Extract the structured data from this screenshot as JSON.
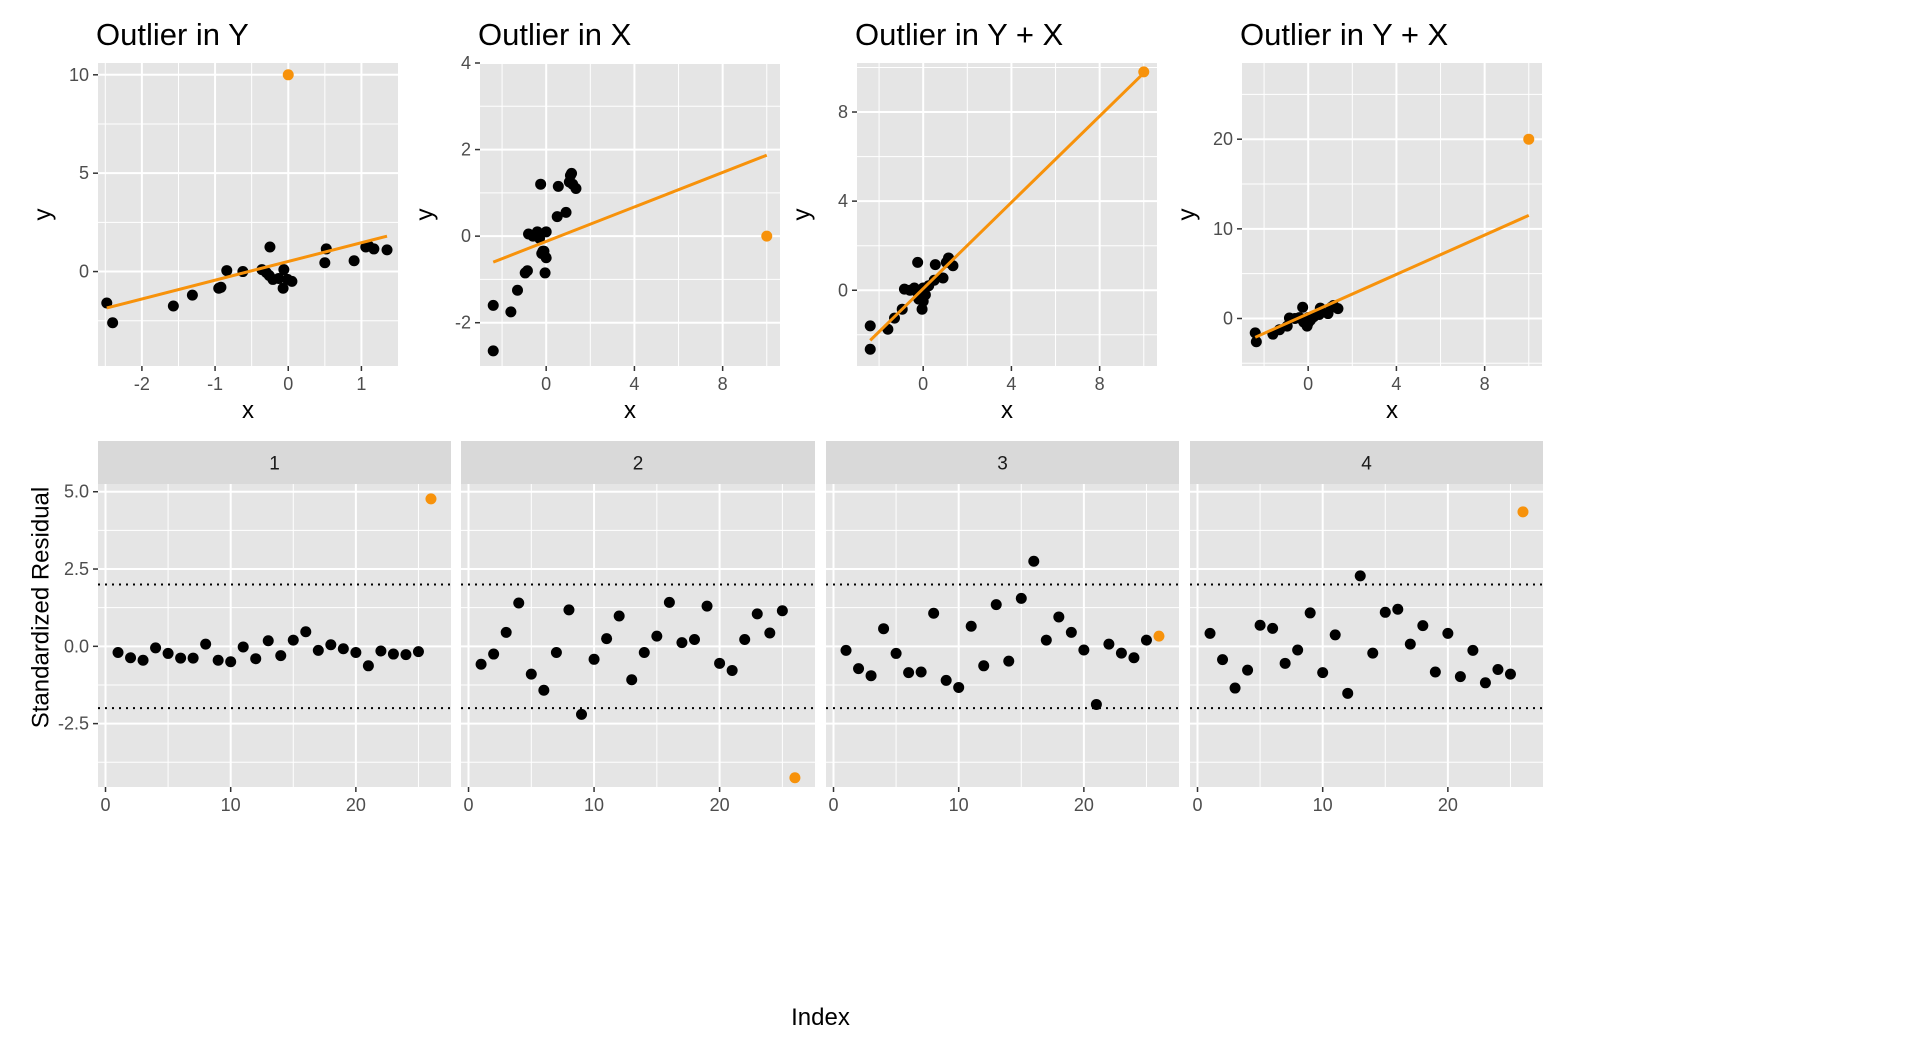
{
  "colors": {
    "panel_bg": "#e5e5e5",
    "grid": "#ffffff",
    "strip_bg": "#d9d9d9",
    "point": "#000000",
    "highlight": "#f7920b"
  },
  "chart_data": [
    {
      "type": "scatter",
      "title": "Outlier in Y",
      "xlabel": "x",
      "ylabel": "y",
      "xlim": [
        -2.6,
        1.5
      ],
      "ylim": [
        -4.8,
        10.6
      ],
      "xticks": [
        -2,
        -1,
        0,
        1
      ],
      "xtick_labels": [
        "-2",
        "-1",
        "0",
        "1"
      ],
      "yticks": [
        0,
        5,
        10
      ],
      "ytick_labels": [
        "0",
        "5",
        "10"
      ],
      "points": [
        [
          -2.48,
          -1.6
        ],
        [
          -2.4,
          -2.6
        ],
        [
          -1.57,
          -1.75
        ],
        [
          -1.31,
          -1.2
        ],
        [
          -0.95,
          -0.85
        ],
        [
          -0.92,
          -0.8
        ],
        [
          -0.84,
          0.05
        ],
        [
          -0.62,
          0.0
        ],
        [
          -0.36,
          0.1
        ],
        [
          -0.3,
          -0.05
        ],
        [
          -0.26,
          -0.2
        ],
        [
          -0.25,
          1.25
        ],
        [
          -0.21,
          -0.4
        ],
        [
          -0.13,
          -0.35
        ],
        [
          -0.07,
          -0.85
        ],
        [
          -0.06,
          0.1
        ],
        [
          -0.01,
          -0.4
        ],
        [
          0.05,
          -0.5
        ],
        [
          0.5,
          0.45
        ],
        [
          0.52,
          1.15
        ],
        [
          0.9,
          0.55
        ],
        [
          1.06,
          1.25
        ],
        [
          1.1,
          1.3
        ],
        [
          1.17,
          1.15
        ],
        [
          1.35,
          1.1
        ]
      ],
      "outlier": [
        0.0,
        10.0
      ],
      "fit": {
        "x": [
          -2.48,
          1.35
        ],
        "y": [
          -1.85,
          1.8
        ]
      }
    },
    {
      "type": "scatter",
      "title": "Outlier in X",
      "xlabel": "x",
      "ylabel": "y",
      "xlim": [
        -3.0,
        10.6
      ],
      "ylim": [
        -3.0,
        4.0
      ],
      "xticks": [
        0,
        4,
        8
      ],
      "xtick_labels": [
        "0",
        "4",
        "8"
      ],
      "yticks": [
        -2,
        0,
        2,
        4
      ],
      "ytick_labels": [
        "-2",
        "0",
        "2",
        "4"
      ],
      "points": [
        [
          -2.4,
          -1.6
        ],
        [
          -2.4,
          -2.65
        ],
        [
          -1.6,
          -1.75
        ],
        [
          -1.3,
          -1.25
        ],
        [
          -0.95,
          -0.85
        ],
        [
          -0.85,
          -0.8
        ],
        [
          -0.8,
          0.05
        ],
        [
          -0.6,
          0.0
        ],
        [
          -0.4,
          0.1
        ],
        [
          -0.3,
          -0.05
        ],
        [
          -0.25,
          1.2
        ],
        [
          -0.2,
          -0.4
        ],
        [
          -0.15,
          -0.35
        ],
        [
          -0.05,
          -0.85
        ],
        [
          0.0,
          0.1
        ],
        [
          0.0,
          -0.5
        ],
        [
          0.5,
          0.45
        ],
        [
          0.55,
          1.15
        ],
        [
          0.9,
          0.55
        ],
        [
          1.05,
          1.25
        ],
        [
          1.1,
          1.4
        ],
        [
          1.15,
          1.45
        ],
        [
          1.2,
          1.2
        ],
        [
          1.35,
          1.1
        ],
        [
          -0.1,
          -0.35
        ]
      ],
      "outlier": [
        10.0,
        0.0
      ],
      "fit": {
        "x": [
          -2.4,
          10.0
        ],
        "y": [
          -0.6,
          1.87
        ]
      }
    },
    {
      "type": "scatter",
      "title": "Outlier in Y + X",
      "xlabel": "x",
      "ylabel": "y",
      "xlim": [
        -3.0,
        10.6
      ],
      "ylim": [
        -3.4,
        10.2
      ],
      "xticks": [
        0,
        4,
        8
      ],
      "xtick_labels": [
        "0",
        "4",
        "8"
      ],
      "yticks": [
        0,
        4,
        8
      ],
      "ytick_labels": [
        "0",
        "4",
        "8"
      ],
      "points": [
        [
          -2.4,
          -1.6
        ],
        [
          -2.4,
          -2.65
        ],
        [
          -1.6,
          -1.75
        ],
        [
          -1.3,
          -1.25
        ],
        [
          -0.95,
          -0.85
        ],
        [
          -0.85,
          0.05
        ],
        [
          -0.6,
          0.0
        ],
        [
          -0.4,
          0.1
        ],
        [
          -0.3,
          -0.05
        ],
        [
          -0.25,
          1.25
        ],
        [
          -0.2,
          -0.4
        ],
        [
          -0.15,
          -0.35
        ],
        [
          -0.05,
          -0.85
        ],
        [
          0.0,
          0.1
        ],
        [
          0.0,
          -0.5
        ],
        [
          0.5,
          0.45
        ],
        [
          0.55,
          1.15
        ],
        [
          0.9,
          0.55
        ],
        [
          1.05,
          1.25
        ],
        [
          1.1,
          1.3
        ],
        [
          1.15,
          1.45
        ],
        [
          1.35,
          1.1
        ],
        [
          -0.1,
          -0.35
        ],
        [
          0.1,
          -0.2
        ],
        [
          0.25,
          0.2
        ]
      ],
      "outlier": [
        10.0,
        9.8
      ],
      "fit": {
        "x": [
          -2.4,
          10.0
        ],
        "y": [
          -2.25,
          9.75
        ]
      }
    },
    {
      "type": "scatter",
      "title": "Outlier in Y + X",
      "xlabel": "x",
      "ylabel": "y",
      "xlim": [
        -3.0,
        10.6
      ],
      "ylim": [
        -5.3,
        28.5
      ],
      "xticks": [
        0,
        4,
        8
      ],
      "xtick_labels": [
        "0",
        "4",
        "8"
      ],
      "yticks": [
        0,
        10,
        20
      ],
      "ytick_labels": [
        "0",
        "10",
        "20"
      ],
      "points": [
        [
          -2.4,
          -1.6
        ],
        [
          -2.35,
          -2.6
        ],
        [
          -1.6,
          -1.75
        ],
        [
          -1.3,
          -1.25
        ],
        [
          -0.95,
          -0.85
        ],
        [
          -0.85,
          0.05
        ],
        [
          -0.6,
          0.0
        ],
        [
          -0.4,
          0.1
        ],
        [
          -0.3,
          -0.05
        ],
        [
          -0.25,
          1.25
        ],
        [
          -0.2,
          -0.4
        ],
        [
          -0.15,
          -0.35
        ],
        [
          -0.05,
          -0.85
        ],
        [
          0.0,
          0.1
        ],
        [
          0.0,
          -0.5
        ],
        [
          0.5,
          0.45
        ],
        [
          0.55,
          1.15
        ],
        [
          0.9,
          0.55
        ],
        [
          1.05,
          1.25
        ],
        [
          1.1,
          1.3
        ],
        [
          1.15,
          1.45
        ],
        [
          1.35,
          1.1
        ],
        [
          -0.1,
          -0.35
        ],
        [
          0.1,
          -0.2
        ],
        [
          0.25,
          0.2
        ]
      ],
      "outlier": [
        10.0,
        20.0
      ],
      "fit": {
        "x": [
          -2.4,
          10.0
        ],
        "y": [
          -2.1,
          11.5
        ]
      }
    },
    {
      "type": "scatter",
      "facets": [
        "1",
        "2",
        "3",
        "4"
      ],
      "xlabel": "Index",
      "ylabel": "Standardized Residual",
      "xlim": [
        -0.6,
        27.6
      ],
      "ylim": [
        -4.55,
        5.25
      ],
      "xticks": [
        0,
        10,
        20
      ],
      "xtick_labels": [
        "0",
        "10",
        "20"
      ],
      "yticks": [
        -2.5,
        0,
        2.5,
        5
      ],
      "ytick_labels": [
        "-2.5",
        "0.0",
        "2.5",
        "5.0"
      ],
      "reference_lines": [
        2,
        -2
      ],
      "series": [
        {
          "values": [
            -0.2,
            -0.37,
            -0.45,
            -0.05,
            -0.23,
            -0.38,
            -0.38,
            0.07,
            -0.45,
            -0.5,
            -0.02,
            -0.4,
            0.18,
            -0.3,
            0.2,
            0.47,
            -0.13,
            0.05,
            -0.08,
            -0.2,
            -0.63,
            -0.15,
            -0.25,
            -0.27,
            -0.17
          ],
          "outlier": [
            26,
            4.77
          ]
        },
        {
          "values": [
            -0.58,
            -0.25,
            0.45,
            1.4,
            -0.9,
            -1.42,
            -0.2,
            1.18,
            -2.2,
            -0.42,
            0.25,
            0.98,
            -1.08,
            -0.2,
            0.33,
            1.42,
            0.12,
            0.22,
            1.3,
            -0.55,
            -0.78,
            0.22,
            1.05,
            0.43,
            1.15
          ],
          "outlier": [
            26,
            -4.25
          ]
        },
        {
          "values": [
            -0.13,
            -0.72,
            -0.95,
            0.57,
            -0.23,
            -0.85,
            -0.83,
            1.07,
            -1.1,
            -1.33,
            0.65,
            -0.63,
            1.35,
            -0.48,
            1.55,
            2.75,
            0.2,
            0.95,
            0.45,
            -0.12,
            -1.88,
            0.07,
            -0.22,
            -0.37,
            0.2
          ],
          "outlier": [
            26,
            0.33
          ]
        },
        {
          "values": [
            0.42,
            -0.43,
            -1.35,
            -0.77,
            0.68,
            0.58,
            -0.55,
            -0.12,
            1.08,
            -0.85,
            0.37,
            -1.52,
            2.28,
            -0.22,
            1.1,
            1.2,
            0.07,
            0.67,
            -0.83,
            0.42,
            -0.98,
            -0.13,
            -1.18,
            -0.75,
            -0.9
          ],
          "outlier": [
            26,
            4.35
          ]
        }
      ]
    }
  ]
}
